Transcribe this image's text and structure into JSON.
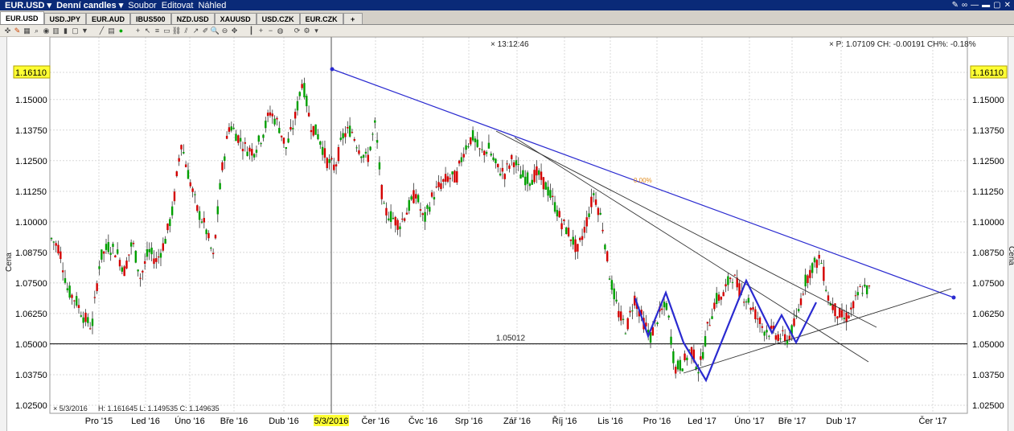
{
  "titlebar": {
    "symbol": "EUR.USD ▾",
    "interval": "Denní candles ▾",
    "menu": [
      "Soubor",
      "Editovat",
      "Náhled"
    ]
  },
  "tabs": [
    "EUR.USD",
    "USD.JPY",
    "EUR.AUD",
    "IBUS500",
    "NZD.USD",
    "XAUUSD",
    "USD.CZK",
    "EUR.CZK",
    "+"
  ],
  "toolbar_icons": [
    "crosshair-icon",
    "pencil-icon",
    "grid-icon",
    "zoom-icon",
    "color-icon",
    "bars-icon",
    "bar-icon",
    "square-icon",
    "down-arrow-icon",
    "line-icon",
    "bar-chart-icon",
    "green-circle-icon",
    "cross-icon",
    "cursor-icon",
    "fib-icon",
    "rect-icon",
    "link-icon",
    "channel-icon",
    "arrow-icon",
    "pen-icon",
    "magnify-icon",
    "magnify-minus-icon",
    "pan-icon",
    "vert-line-icon",
    "plus-icon",
    "minus-icon",
    "globe-icon",
    "refresh-icon",
    "settings-icon",
    "dropdown-icon"
  ],
  "header": {
    "time": "13:12:46",
    "quote": "P: 1.07109 CH: -0.00191 CH%: -0.18%"
  },
  "footer": {
    "date": "5/3/2016",
    "hlc": "H: 1.161645  L: 1.149535  C: 1.149635"
  },
  "chart_data": {
    "type": "candlestick",
    "ylabel": "Cena",
    "yticks": [
      "1.16110",
      "1.15000",
      "1.13750",
      "1.12500",
      "1.11250",
      "1.10000",
      "1.08750",
      "1.07500",
      "1.06250",
      "1.05000",
      "1.03750",
      "1.02500"
    ],
    "xticks": [
      "Pro '15",
      "Led '16",
      "Úno '16",
      "Bře '16",
      "Dub '16",
      "5/3/2016",
      "Čer '16",
      "Čvc '16",
      "Srp '16",
      "Zář '16",
      "Říj '16",
      "Lis '16",
      "Pro '16",
      "Led '17",
      "Úno '17",
      "Bře '17",
      "Dub '17",
      "Čer '17"
    ],
    "ylim": [
      1.0235,
      1.1652
    ],
    "horizontal_line": {
      "value": 1.05012,
      "label": "1.05012"
    },
    "fib_label": "0.00%",
    "cursor_value": "1.16110",
    "colors": {
      "up": "#00a000",
      "down": "#d40000",
      "trend_blue": "#2a2ad0",
      "trend_gray": "#333333",
      "highlight": "#ffff33"
    },
    "price_path": [
      1.093,
      1.089,
      1.072,
      1.068,
      1.061,
      1.057,
      1.085,
      1.09,
      1.088,
      1.08,
      1.092,
      1.077,
      1.088,
      1.084,
      1.092,
      1.105,
      1.133,
      1.118,
      1.105,
      1.098,
      1.085,
      1.12,
      1.14,
      1.135,
      1.13,
      1.129,
      1.135,
      1.145,
      1.14,
      1.13,
      1.141,
      1.158,
      1.14,
      1.135,
      1.125,
      1.122,
      1.135,
      1.138,
      1.13,
      1.125,
      1.14,
      1.105,
      1.102,
      1.099,
      1.105,
      1.112,
      1.1,
      1.11,
      1.115,
      1.118,
      1.118,
      1.13,
      1.135,
      1.128,
      1.13,
      1.122,
      1.12,
      1.126,
      1.119,
      1.117,
      1.12,
      1.115,
      1.108,
      1.1,
      1.095,
      1.088,
      1.099,
      1.112,
      1.1,
      1.077,
      1.063,
      1.056,
      1.069,
      1.06,
      1.053,
      1.062,
      1.066,
      1.04,
      1.042,
      1.048,
      1.039,
      1.056,
      1.068,
      1.07,
      1.079,
      1.072,
      1.068,
      1.062,
      1.056,
      1.055,
      1.053,
      1.052,
      1.06,
      1.075,
      1.082,
      1.085,
      1.068,
      1.063,
      1.06,
      1.065,
      1.073,
      1.072
    ]
  }
}
